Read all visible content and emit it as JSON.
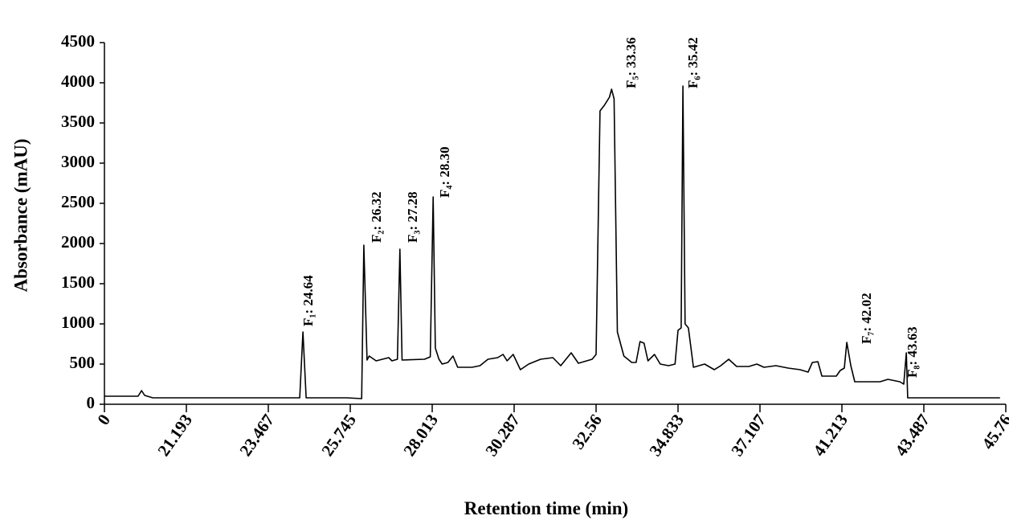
{
  "chart_data": {
    "type": "line",
    "x_label": "Retention time (min)",
    "y_label": "Absorbance (mAU)",
    "xlim": [
      0,
      45.76
    ],
    "xticks": [
      0,
      21.193,
      23.467,
      25.745,
      28.013,
      30.287,
      32.56,
      34.833,
      37.107,
      41.213,
      43.487,
      45.76
    ],
    "ylim": [
      0,
      4500
    ],
    "yticks": [
      0,
      500,
      1000,
      1500,
      2000,
      2500,
      3000,
      3500,
      4000,
      4500
    ],
    "grid": false,
    "series": [
      {
        "name": "Absorbance",
        "color": "#000000",
        "x": [
          0,
          8.7,
          9.6,
          10.4,
          12.5,
          24.34,
          24.43,
          24.52,
          25.65,
          26.06,
          26.12,
          26.21,
          26.27,
          26.46,
          26.81,
          26.9,
          27.05,
          27.12,
          27.18,
          27.8,
          27.96,
          28.04,
          28.1,
          28.2,
          28.29,
          28.45,
          28.59,
          28.72,
          29.12,
          29.34,
          29.56,
          29.83,
          29.98,
          30.09,
          30.26,
          30.46,
          30.69,
          31.02,
          31.36,
          31.58,
          31.87,
          32.07,
          32.45,
          32.56,
          32.67,
          32.79,
          32.93,
          32.99,
          33.06,
          33.15,
          33.33,
          33.55,
          33.67,
          33.78,
          33.89,
          34.0,
          34.18,
          34.34,
          34.57,
          34.75,
          34.833,
          34.92,
          34.97,
          35.03,
          35.12,
          35.26,
          35.57,
          35.84,
          36.02,
          36.24,
          36.46,
          36.8,
          37.02,
          37.31,
          37.91,
          38.52,
          39.12,
          39.52,
          39.73,
          40.01,
          40.21,
          40.93,
          41.13,
          41.28,
          41.35,
          41.46,
          41.57,
          42.27,
          42.49,
          42.82,
          42.93,
          43.0,
          43.04,
          45.6
        ],
        "values": [
          100,
          100,
          170,
          110,
          80,
          80,
          900,
          80,
          80,
          70,
          1980,
          550,
          600,
          540,
          580,
          540,
          560,
          1930,
          550,
          560,
          590,
          2580,
          700,
          560,
          500,
          520,
          600,
          460,
          460,
          480,
          560,
          580,
          620,
          540,
          620,
          430,
          500,
          560,
          580,
          480,
          640,
          510,
          560,
          620,
          3650,
          3720,
          3820,
          3920,
          3800,
          900,
          600,
          520,
          520,
          780,
          760,
          540,
          620,
          500,
          480,
          500,
          920,
          950,
          3960,
          1000,
          950,
          460,
          500,
          430,
          480,
          560,
          470,
          470,
          500,
          460,
          480,
          450,
          430,
          400,
          520,
          530,
          350,
          350,
          420,
          450,
          770,
          480,
          280,
          280,
          310,
          280,
          250,
          640,
          80,
          80
        ]
      }
    ],
    "annotations": [
      "F₁: 24.64",
      "F₂: 26.32",
      "F₃: 27.28",
      "F₄: 28.30",
      "F₅: 33.36",
      "F₆: 35.42",
      "F₇: 42.02",
      "F₈: 43.63"
    ]
  }
}
